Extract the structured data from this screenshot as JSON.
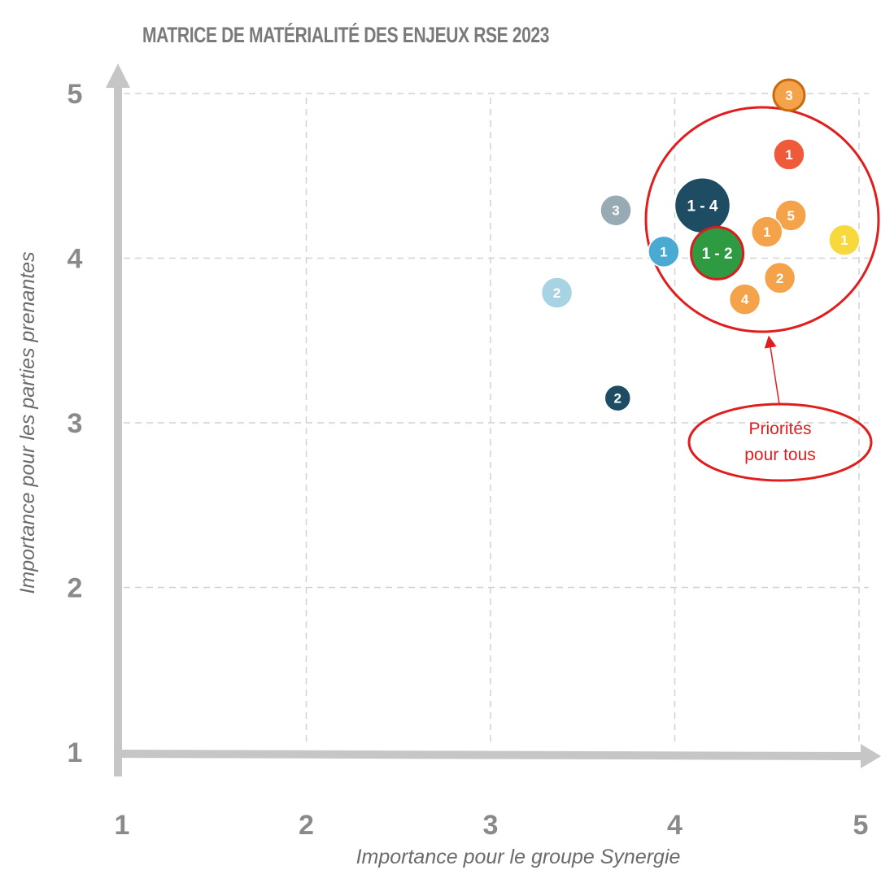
{
  "chart_data": {
    "type": "scatter",
    "title": "MATRICE DE MATÉRIALITÉ DES ENJEUX RSE 2023",
    "xlabel": "Importance pour le groupe Synergie",
    "ylabel": "Importance pour les parties prenantes",
    "xlim": [
      1,
      5
    ],
    "ylim": [
      1,
      5
    ],
    "x_ticks": [
      "1",
      "2",
      "3",
      "4",
      "5"
    ],
    "y_ticks": [
      "1",
      "2",
      "3",
      "4",
      "5"
    ],
    "grid": true,
    "points": [
      {
        "label": "3",
        "x": 4.62,
        "y": 4.99,
        "color": "#f5a34a",
        "stroke": "#c86a10",
        "size": "small"
      },
      {
        "label": "1",
        "x": 4.62,
        "y": 4.63,
        "color": "#ef5a3a",
        "stroke": "",
        "size": "small"
      },
      {
        "label": "1 - 4",
        "x": 4.15,
        "y": 4.32,
        "color": "#1e4d63",
        "stroke": "",
        "size": "large"
      },
      {
        "label": "5",
        "x": 4.63,
        "y": 4.26,
        "color": "#f5a34a",
        "stroke": "",
        "size": "small"
      },
      {
        "label": "1",
        "x": 4.5,
        "y": 4.16,
        "color": "#f5a34a",
        "stroke": "",
        "size": "small"
      },
      {
        "label": "1",
        "x": 4.92,
        "y": 4.11,
        "color": "#f7d93e",
        "stroke": "",
        "size": "small"
      },
      {
        "label": "1",
        "x": 3.94,
        "y": 4.04,
        "color": "#4aaad2",
        "stroke": "",
        "size": "small"
      },
      {
        "label": "1 - 2",
        "x": 4.23,
        "y": 4.03,
        "color": "#2e9a42",
        "stroke": "#d61e1e",
        "size": "medium"
      },
      {
        "label": "2",
        "x": 4.57,
        "y": 3.88,
        "color": "#f5a34a",
        "stroke": "",
        "size": "small"
      },
      {
        "label": "4",
        "x": 4.38,
        "y": 3.75,
        "color": "#f5a34a",
        "stroke": "",
        "size": "small"
      },
      {
        "label": "3",
        "x": 3.68,
        "y": 4.29,
        "color": "#98aab4",
        "stroke": "",
        "size": "small"
      },
      {
        "label": "2",
        "x": 3.36,
        "y": 3.79,
        "color": "#a8d3e3",
        "stroke": "",
        "size": "small"
      },
      {
        "label": "2",
        "x": 3.69,
        "y": 3.15,
        "color": "#1e4d63",
        "stroke": "",
        "size": "xsmall"
      }
    ],
    "annotation": {
      "text_line1": "Priorités",
      "text_line2": "pour tous",
      "color": "#e01e1e"
    }
  }
}
